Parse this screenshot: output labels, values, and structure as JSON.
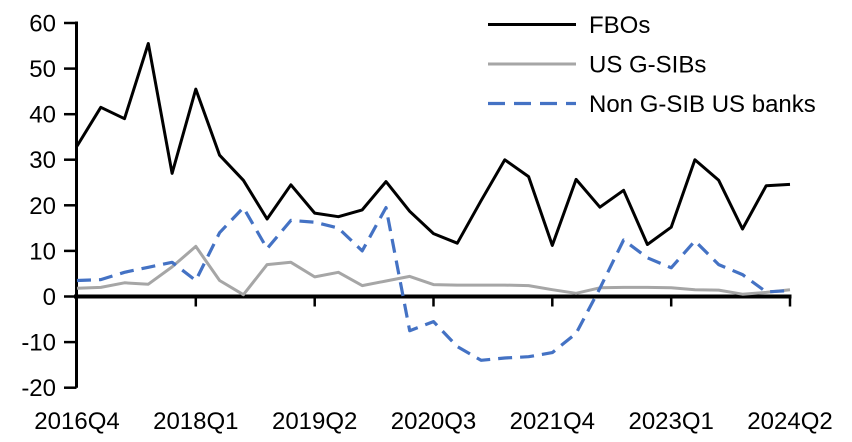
{
  "chart_data": {
    "type": "line",
    "title": "",
    "xlabel": "",
    "ylabel": "",
    "grid": false,
    "legend_position": "top-right-inside",
    "ylim": [
      -20,
      60
    ],
    "y_ticks": [
      60,
      50,
      40,
      30,
      20,
      10,
      0,
      -10,
      -20
    ],
    "y_tick_labels": [
      "60",
      "50",
      "40",
      "30",
      "20",
      "10",
      "0",
      "-10",
      "-20"
    ],
    "x_tick_labels": [
      "2016Q4",
      "2018Q1",
      "2019Q2",
      "2020Q3",
      "2021Q4",
      "2023Q1",
      "2024Q2"
    ],
    "x_tick_indices": [
      0,
      5,
      10,
      15,
      20,
      25,
      30
    ],
    "x": [
      "2016Q4",
      "2017Q1",
      "2017Q2",
      "2017Q3",
      "2017Q4",
      "2018Q1",
      "2018Q2",
      "2018Q3",
      "2018Q4",
      "2019Q1",
      "2019Q2",
      "2019Q3",
      "2019Q4",
      "2020Q1",
      "2020Q2",
      "2020Q3",
      "2020Q4",
      "2021Q1",
      "2021Q2",
      "2021Q3",
      "2021Q4",
      "2022Q1",
      "2022Q2",
      "2022Q3",
      "2022Q4",
      "2023Q1",
      "2023Q2",
      "2023Q3",
      "2023Q4",
      "2024Q1",
      "2024Q2"
    ],
    "series": [
      {
        "name": "FBOs",
        "color": "#000000",
        "style": "solid",
        "values": [
          33,
          41.5,
          39,
          55.5,
          27,
          45.5,
          31,
          25.5,
          17,
          24.5,
          18.3,
          17.5,
          19,
          25.2,
          18.7,
          13.8,
          11.7,
          21,
          30,
          26.3,
          11.2,
          25.7,
          19.6,
          23.3,
          11.4,
          15.2,
          30,
          25.5,
          14.8,
          24.3,
          24.6
        ]
      },
      {
        "name": "US G-SIBs",
        "color": "#a6a6a6",
        "style": "solid",
        "values": [
          1.8,
          2,
          3,
          2.7,
          6.5,
          11,
          3.5,
          0.4,
          7,
          7.5,
          4.3,
          5.3,
          2.4,
          3.4,
          4.4,
          2.6,
          2.5,
          2.5,
          2.5,
          2.4,
          1.5,
          0.7,
          1.9,
          2,
          2,
          1.9,
          1.5,
          1.4,
          0.5,
          0.9,
          1.5
        ]
      },
      {
        "name": "Non G-SIB US banks",
        "color": "#4472c4",
        "style": "dashed",
        "values": [
          3.5,
          3.7,
          5.3,
          6.4,
          7.5,
          3.5,
          14,
          19.5,
          10.5,
          16.7,
          16.3,
          15,
          10,
          19.5,
          -7.5,
          -5.5,
          -11,
          -14,
          -13.5,
          -13.2,
          -12.3,
          -8.1,
          1.8,
          12.4,
          8.5,
          6.3,
          12.2,
          7,
          4.8,
          1,
          1.3
        ]
      }
    ]
  }
}
